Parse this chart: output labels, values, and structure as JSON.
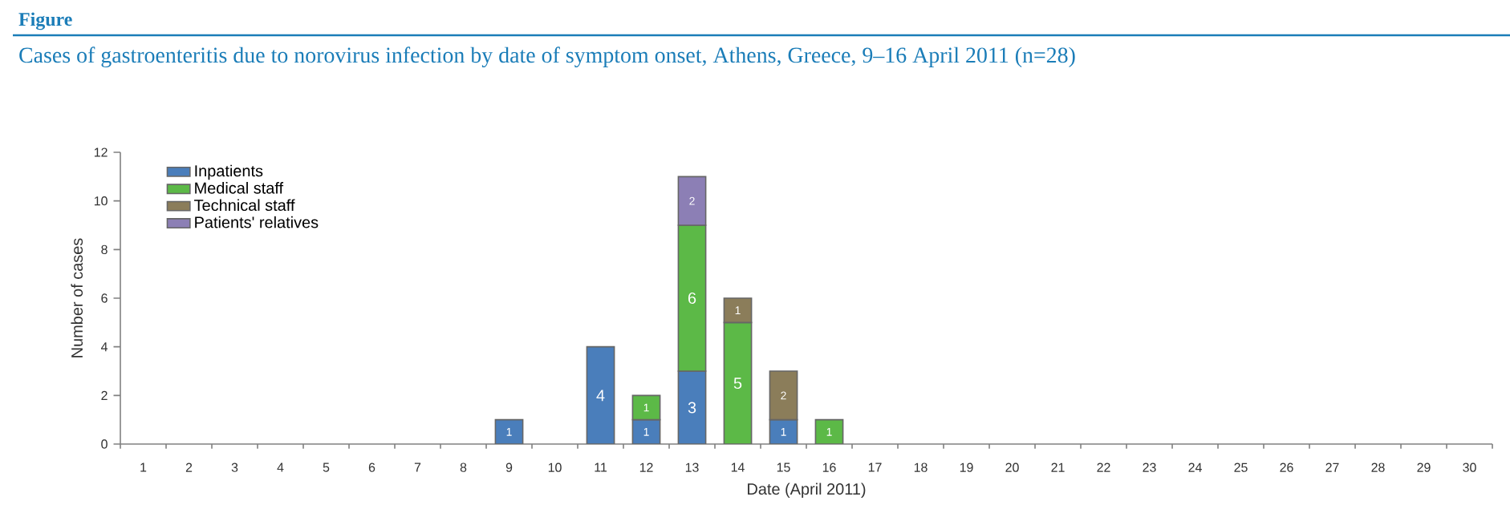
{
  "chart_data": {
    "type": "bar",
    "stacked": true,
    "title": "Figure",
    "subtitle": "Cases of gastroenteritis due to norovirus infection by date of symptom onset, Athens, Greece, 9–16 April 2011 (n=28)",
    "xlabel": "Date (April 2011)",
    "ylabel": "Number of cases",
    "categories": [
      "1",
      "2",
      "3",
      "4",
      "5",
      "6",
      "7",
      "8",
      "9",
      "10",
      "11",
      "12",
      "13",
      "14",
      "15",
      "16",
      "17",
      "18",
      "19",
      "20",
      "21",
      "22",
      "23",
      "24",
      "25",
      "26",
      "27",
      "28",
      "29",
      "30"
    ],
    "series": [
      {
        "name": "Inpatients",
        "color": "#4a7ebb",
        "values": [
          null,
          null,
          null,
          null,
          null,
          null,
          null,
          null,
          1,
          null,
          4,
          1,
          3,
          null,
          1,
          null,
          null,
          null,
          null,
          null,
          null,
          null,
          null,
          null,
          null,
          null,
          null,
          null,
          null,
          null
        ]
      },
      {
        "name": "Medical staff",
        "color": "#5cb947",
        "values": [
          null,
          null,
          null,
          null,
          null,
          null,
          null,
          null,
          null,
          null,
          null,
          1,
          6,
          5,
          null,
          1,
          null,
          null,
          null,
          null,
          null,
          null,
          null,
          null,
          null,
          null,
          null,
          null,
          null,
          null
        ]
      },
      {
        "name": "Technical staff",
        "color": "#8b7d5a",
        "values": [
          null,
          null,
          null,
          null,
          null,
          null,
          null,
          null,
          null,
          null,
          null,
          null,
          null,
          1,
          2,
          null,
          null,
          null,
          null,
          null,
          null,
          null,
          null,
          null,
          null,
          null,
          null,
          null,
          null,
          null
        ]
      },
      {
        "name": "Patients' relatives",
        "color": "#8c7fb5",
        "values": [
          null,
          null,
          null,
          null,
          null,
          null,
          null,
          null,
          null,
          null,
          null,
          null,
          2,
          null,
          null,
          null,
          null,
          null,
          null,
          null,
          null,
          null,
          null,
          null,
          null,
          null,
          null,
          null,
          null,
          null
        ]
      }
    ],
    "ylim": [
      0,
      12
    ],
    "yticks": [
      0,
      2,
      4,
      6,
      8,
      10,
      12
    ],
    "grid": false,
    "legend": "top left",
    "data_labels": true
  }
}
